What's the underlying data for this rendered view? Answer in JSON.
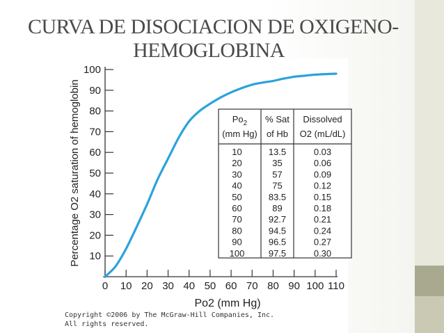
{
  "slide": {
    "title_line1": "CURVA DE DISOCIACION DE OXIGENO-",
    "title_line2": "HEMOGLOBINA"
  },
  "copyright": {
    "line1": "Copyright ©2006 by The McGraw-Hill Companies, Inc.",
    "line2": "All rights reserved."
  },
  "colors": {
    "curve": "#2aa3dc",
    "axis": "#333333",
    "text": "#222222"
  },
  "chart_data": {
    "type": "line",
    "title": "",
    "xlabel": "Po2 (mm Hg)",
    "ylabel": "Percentage O2 saturation of hemoglobin",
    "xlim": [
      0,
      110
    ],
    "ylim": [
      0,
      100
    ],
    "x_ticks": [
      0,
      10,
      20,
      30,
      40,
      50,
      60,
      70,
      80,
      90,
      100,
      110
    ],
    "y_ticks": [
      10,
      20,
      30,
      40,
      50,
      60,
      70,
      80,
      90,
      100
    ],
    "grid": false,
    "series": [
      {
        "x": [
          0,
          5,
          10,
          15,
          20,
          25,
          30,
          35,
          40,
          45,
          50,
          55,
          60,
          65,
          70,
          75,
          80,
          85,
          90,
          95,
          100,
          105,
          110
        ],
        "y": [
          0,
          5,
          13.5,
          24,
          35,
          47,
          57,
          67,
          75,
          80,
          83.5,
          86.5,
          89,
          91,
          92.7,
          93.7,
          94.5,
          95.6,
          96.5,
          97,
          97.5,
          97.8,
          98
        ]
      }
    ],
    "table": {
      "headers": [
        {
          "main": "Po",
          "sub": "2",
          "line2": "(mm Hg)"
        },
        {
          "main": "% Sat",
          "sub": "",
          "line2": "of Hb"
        },
        {
          "main": "Dissolved",
          "sub": "",
          "line2": "O2 (mL/dL)"
        }
      ],
      "rows": [
        [
          "10",
          "13.5",
          "0.03"
        ],
        [
          "20",
          "35",
          "0.06"
        ],
        [
          "30",
          "57",
          "0.09"
        ],
        [
          "40",
          "75",
          "0.12"
        ],
        [
          "50",
          "83.5",
          "0.15"
        ],
        [
          "60",
          "89",
          "0.18"
        ],
        [
          "70",
          "92.7",
          "0.21"
        ],
        [
          "80",
          "94.5",
          "0.24"
        ],
        [
          "90",
          "96.5",
          "0.27"
        ],
        [
          "100",
          "97.5",
          "0.30"
        ]
      ]
    }
  }
}
